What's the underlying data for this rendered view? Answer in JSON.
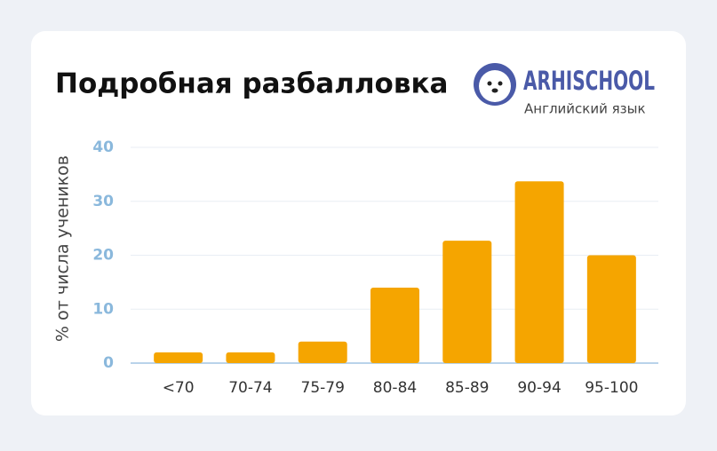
{
  "chart_data": {
    "type": "bar",
    "title": "Подробная разбалловка",
    "y_label": "% от числа учеников",
    "categories": [
      "<70",
      "70-74",
      "75-79",
      "80-84",
      "85-89",
      "90-94",
      "95-100"
    ],
    "values": [
      2,
      2,
      4,
      14,
      22.7,
      33.7,
      20
    ],
    "color": "#f5a500",
    "ylim": [
      0,
      40
    ],
    "yticks": [
      0,
      10,
      20,
      30,
      40
    ],
    "grid": true
  },
  "logo": {
    "name": "ARHISCHOOL",
    "subtitle": "Английский язык"
  }
}
